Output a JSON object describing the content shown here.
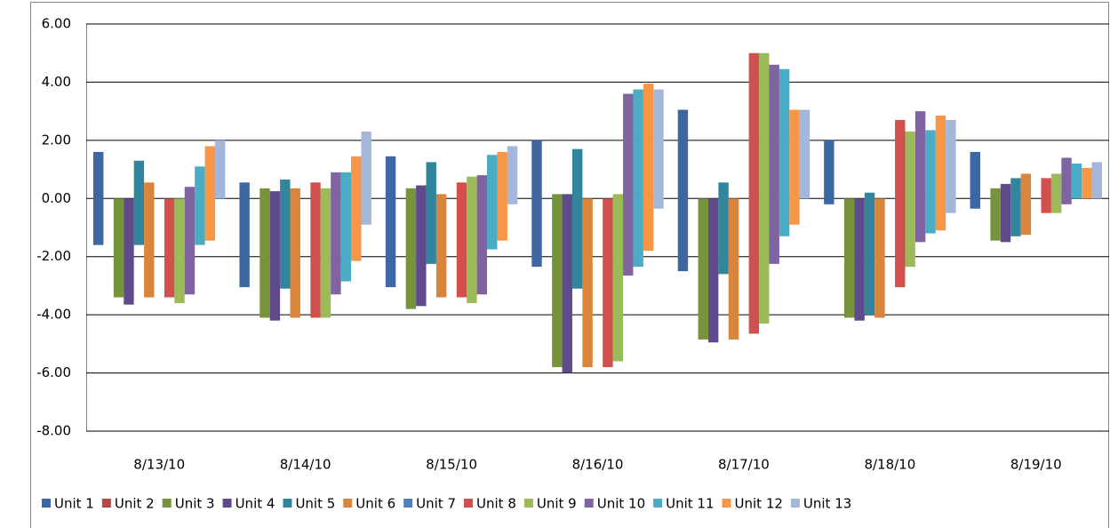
{
  "chart_data": {
    "type": "floating-bar",
    "categories": [
      "8/13/10",
      "8/14/10",
      "8/15/10",
      "8/16/10",
      "8/17/10",
      "8/18/10",
      "8/19/10"
    ],
    "ylim": [
      -8,
      6
    ],
    "yticks": [
      {
        "value": -8,
        "label": "-8.00"
      },
      {
        "value": -6,
        "label": "-6.00"
      },
      {
        "value": -4,
        "label": "-4.00"
      },
      {
        "value": -2,
        "label": "-2.00"
      },
      {
        "value": 0,
        "label": "0.00"
      },
      {
        "value": 2,
        "label": "2.00"
      },
      {
        "value": 4,
        "label": "4.00"
      },
      {
        "value": 6,
        "label": "6.00"
      }
    ],
    "grid": true,
    "legend": "bottom",
    "series": [
      {
        "name": "Unit 1",
        "color": "#3c67a3",
        "low": [
          -1.6,
          -3.05,
          -3.05,
          -2.35,
          -2.5,
          -0.2,
          -0.35
        ],
        "high": [
          1.6,
          0.55,
          1.45,
          2.0,
          3.05,
          2.0,
          1.6
        ]
      },
      {
        "name": "Unit 2",
        "color": "#b54744",
        "low": [
          null,
          null,
          null,
          null,
          null,
          null,
          null
        ],
        "high": [
          null,
          null,
          null,
          null,
          null,
          null,
          null
        ]
      },
      {
        "name": "Unit 3",
        "color": "#77933c",
        "low": [
          -3.4,
          -4.1,
          -3.8,
          -5.8,
          -4.85,
          -4.1,
          -1.45
        ],
        "high": [
          0,
          0.35,
          0.35,
          0.15,
          0,
          0,
          0.35
        ]
      },
      {
        "name": "Unit 4",
        "color": "#5f4b8b",
        "low": [
          -3.65,
          -4.2,
          -3.7,
          -6.0,
          -4.95,
          -4.2,
          -1.5
        ],
        "high": [
          0,
          0.25,
          0.45,
          0.15,
          0,
          0,
          0.5
        ]
      },
      {
        "name": "Unit 5",
        "color": "#31859c",
        "low": [
          -1.6,
          -3.1,
          -2.25,
          -3.1,
          -2.6,
          -4.0,
          -1.3
        ],
        "high": [
          1.3,
          0.65,
          1.25,
          1.7,
          0.55,
          0.2,
          0.7
        ]
      },
      {
        "name": "Unit 6",
        "color": "#d9853b",
        "low": [
          -3.4,
          -4.1,
          -3.4,
          -5.8,
          -4.85,
          -4.1,
          -1.25
        ],
        "high": [
          0.55,
          0.35,
          0.15,
          0,
          0,
          0,
          0.85
        ]
      },
      {
        "name": "Unit 7",
        "color": "#4f81bd",
        "low": [
          null,
          null,
          null,
          null,
          null,
          null,
          null
        ],
        "high": [
          null,
          null,
          null,
          null,
          null,
          null,
          null
        ]
      },
      {
        "name": "Unit 8",
        "color": "#d0504d",
        "low": [
          -3.4,
          -4.1,
          -3.4,
          -5.8,
          -4.65,
          -3.05,
          -0.5
        ],
        "high": [
          0,
          0.55,
          0.55,
          0,
          5.0,
          2.7,
          0.7
        ]
      },
      {
        "name": "Unit 9",
        "color": "#9bbb59",
        "low": [
          -3.6,
          -4.1,
          -3.6,
          -5.6,
          -4.3,
          -2.35,
          -0.5
        ],
        "high": [
          0,
          0.35,
          0.75,
          0.15,
          5.0,
          2.3,
          0.85
        ]
      },
      {
        "name": "Unit 10",
        "color": "#8064a2",
        "low": [
          -3.3,
          -3.3,
          -3.3,
          -2.65,
          -2.25,
          -1.5,
          -0.2
        ],
        "high": [
          0.4,
          0.9,
          0.8,
          3.6,
          4.6,
          3.0,
          1.4
        ]
      },
      {
        "name": "Unit 11",
        "color": "#4bacc6",
        "low": [
          -1.6,
          -2.85,
          -1.75,
          -2.35,
          -1.3,
          -1.2,
          0
        ],
        "high": [
          1.1,
          0.9,
          1.5,
          3.75,
          4.45,
          2.35,
          1.2
        ]
      },
      {
        "name": "Unit 12",
        "color": "#f79646",
        "low": [
          -1.45,
          -2.15,
          -1.45,
          -1.8,
          -0.9,
          -1.1,
          0
        ],
        "high": [
          1.8,
          1.45,
          1.6,
          3.95,
          3.05,
          2.85,
          1.05
        ]
      },
      {
        "name": "Unit 13",
        "color": "#a5b6db",
        "low": [
          0,
          -0.9,
          -0.2,
          -0.35,
          0,
          -0.5,
          0
        ],
        "high": [
          2.0,
          2.3,
          1.8,
          3.75,
          3.05,
          2.7,
          1.25
        ]
      }
    ]
  }
}
